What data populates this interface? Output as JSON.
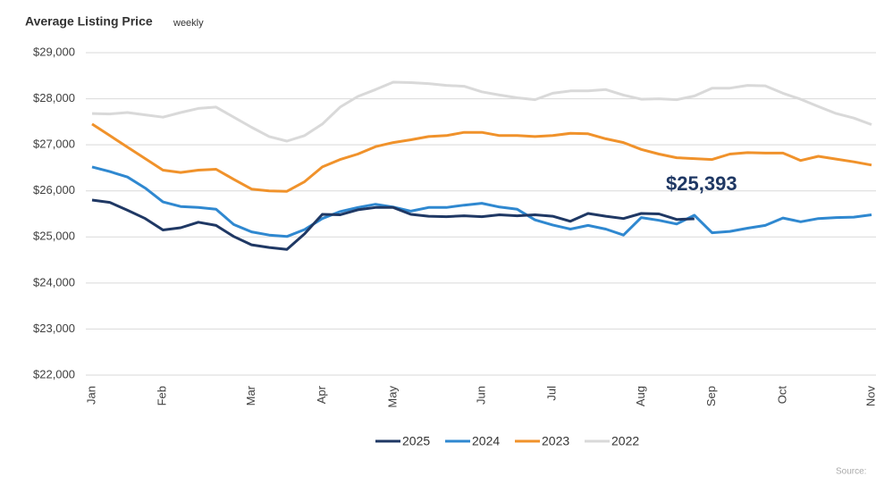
{
  "chart_data": {
    "type": "line",
    "title": "Average Listing Price",
    "subtitle": "weekly",
    "annotation": "$25,393",
    "source": "Source:",
    "categories": [
      "Jan",
      null,
      null,
      null,
      "Feb",
      null,
      null,
      null,
      null,
      "Mar",
      null,
      null,
      null,
      "Apr",
      null,
      null,
      null,
      "May",
      null,
      null,
      null,
      null,
      "Jun",
      null,
      null,
      null,
      "Jul",
      null,
      null,
      null,
      null,
      "Aug",
      null,
      null,
      null,
      "Sep",
      null,
      null,
      null,
      "Oct",
      null,
      null,
      null,
      null,
      "Nov"
    ],
    "series": [
      {
        "name": "2025",
        "color": "#1f3864",
        "values": [
          25800,
          25750,
          25580,
          25400,
          25150,
          25200,
          25320,
          25250,
          25010,
          24830,
          24770,
          24730,
          25070,
          25490,
          25480,
          25590,
          25640,
          25640,
          25490,
          25450,
          25440,
          25460,
          25440,
          25480,
          25460,
          25480,
          25450,
          25340,
          25510,
          25450,
          25400,
          25510,
          25500,
          25380,
          25393,
          null,
          null,
          null,
          null,
          null,
          null,
          null,
          null,
          null,
          null
        ]
      },
      {
        "name": "2024",
        "color": "#2f88d0",
        "values": [
          26520,
          26420,
          26300,
          26060,
          25760,
          25660,
          25640,
          25600,
          25270,
          25110,
          25040,
          25010,
          25160,
          25400,
          25550,
          25640,
          25710,
          25650,
          25560,
          25640,
          25640,
          25690,
          25730,
          25650,
          25600,
          25370,
          25260,
          25170,
          25250,
          25170,
          25040,
          25420,
          25360,
          25280,
          25470,
          25090,
          25120,
          25190,
          25250,
          25410,
          25330,
          25400,
          25420,
          25430,
          25480
        ]
      },
      {
        "name": "2023",
        "color": "#f0922b",
        "values": [
          27450,
          27200,
          26950,
          26700,
          26450,
          26400,
          26450,
          26470,
          26250,
          26040,
          26000,
          25990,
          26200,
          26520,
          26680,
          26800,
          26960,
          27050,
          27110,
          27180,
          27200,
          27270,
          27270,
          27200,
          27200,
          27180,
          27200,
          27250,
          27240,
          27130,
          27050,
          26900,
          26800,
          26720,
          26700,
          26680,
          26800,
          26830,
          26820,
          26820,
          26660,
          26750,
          26690,
          26630,
          26560
        ]
      },
      {
        "name": "2022",
        "color": "#d9d9d9",
        "values": [
          27680,
          27670,
          27700,
          27650,
          27600,
          27700,
          27790,
          27820,
          27600,
          27380,
          27180,
          27080,
          27200,
          27450,
          27820,
          28050,
          28200,
          28360,
          28350,
          28330,
          28290,
          28270,
          28150,
          28080,
          28020,
          27980,
          28120,
          28170,
          28170,
          28200,
          28080,
          27990,
          28000,
          27980,
          28060,
          28230,
          28230,
          28290,
          28280,
          28120,
          27990,
          27830,
          27680,
          27580,
          27440
        ]
      }
    ],
    "ylim": [
      22000,
      29000
    ],
    "yticks": [
      {
        "value": 22000,
        "label": "$22,000"
      },
      {
        "value": 23000,
        "label": "$23,000"
      },
      {
        "value": 24000,
        "label": "$24,000"
      },
      {
        "value": 25000,
        "label": "$25,000"
      },
      {
        "value": 26000,
        "label": "$26,000"
      },
      {
        "value": 27000,
        "label": "$27,000"
      },
      {
        "value": 28000,
        "label": "$28,000"
      },
      {
        "value": 29000,
        "label": "$29,000"
      }
    ],
    "grid": true,
    "legend": "bottom"
  }
}
